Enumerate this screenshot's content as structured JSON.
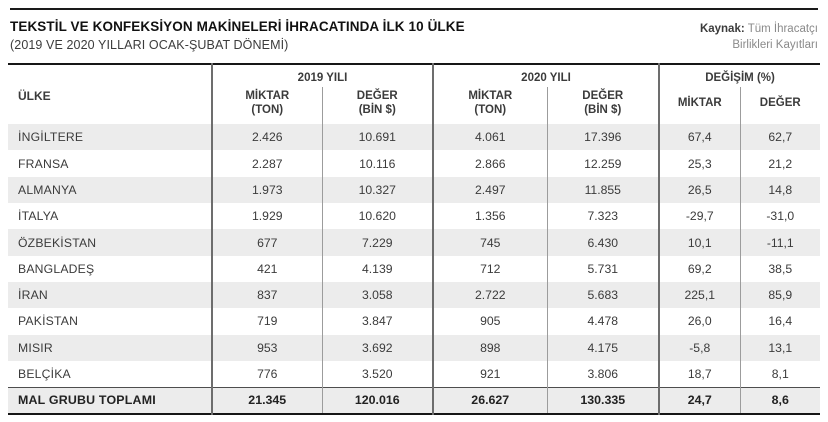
{
  "page": {
    "title": "TEKSTİL VE KONFEKSİYON MAKİNELERİ İHRACATINDA İLK 10 ÜLKE",
    "subtitle": "(2019 VE 2020 YILLARI OCAK-ŞUBAT DÖNEMİ)",
    "source_label": "Kaynak:",
    "source_line1": "Tüm İhracatçı",
    "source_line2": "Birlikleri Kayıtları"
  },
  "colors": {
    "rule": "#1a1a1a",
    "zebra_gray": "#ececec",
    "group_divider": "#6d6d6d",
    "sub_divider": "#9c9c9c",
    "text": "#3b3b3b"
  },
  "table": {
    "col_headers": {
      "country": "ÜLKE",
      "group_2019": "2019 YILI",
      "group_2020": "2020 YILI",
      "group_change": "DEĞİŞİM (%)",
      "miktar_ton": "MİKTAR\n(TON)",
      "deger_bin": "DEĞER\n(BİN $)",
      "miktar": "MİKTAR",
      "deger": "DEĞER"
    },
    "rows": [
      {
        "country": "İNGİLTERE",
        "m2019": "2.426",
        "d2019": "10.691",
        "m2020": "4.061",
        "d2020": "17.396",
        "cm": "67,4",
        "cd": "62,7"
      },
      {
        "country": "FRANSA",
        "m2019": "2.287",
        "d2019": "10.116",
        "m2020": "2.866",
        "d2020": "12.259",
        "cm": "25,3",
        "cd": "21,2"
      },
      {
        "country": "ALMANYA",
        "m2019": "1.973",
        "d2019": "10.327",
        "m2020": "2.497",
        "d2020": "11.855",
        "cm": "26,5",
        "cd": "14,8"
      },
      {
        "country": "İTALYA",
        "m2019": "1.929",
        "d2019": "10.620",
        "m2020": "1.356",
        "d2020": "7.323",
        "cm": "-29,7",
        "cd": "-31,0"
      },
      {
        "country": "ÖZBEKİSTAN",
        "m2019": "677",
        "d2019": "7.229",
        "m2020": "745",
        "d2020": "6.430",
        "cm": "10,1",
        "cd": "-11,1"
      },
      {
        "country": "BANGLADEŞ",
        "m2019": "421",
        "d2019": "4.139",
        "m2020": "712",
        "d2020": "5.731",
        "cm": "69,2",
        "cd": "38,5"
      },
      {
        "country": "İRAN",
        "m2019": "837",
        "d2019": "3.058",
        "m2020": "2.722",
        "d2020": "5.683",
        "cm": "225,1",
        "cd": "85,9"
      },
      {
        "country": "PAKİSTAN",
        "m2019": "719",
        "d2019": "3.847",
        "m2020": "905",
        "d2020": "4.478",
        "cm": "26,0",
        "cd": "16,4"
      },
      {
        "country": "MISIR",
        "m2019": "953",
        "d2019": "3.692",
        "m2020": "898",
        "d2020": "4.175",
        "cm": "-5,8",
        "cd": "13,1"
      },
      {
        "country": "BELÇİKA",
        "m2019": "776",
        "d2019": "3.520",
        "m2020": "921",
        "d2020": "3.806",
        "cm": "18,7",
        "cd": "8,1"
      }
    ],
    "total_row": {
      "country": "MAL GRUBU TOPLAMI",
      "m2019": "21.345",
      "d2019": "120.016",
      "m2020": "26.627",
      "d2020": "130.335",
      "cm": "24,7",
      "cd": "8,6"
    }
  }
}
